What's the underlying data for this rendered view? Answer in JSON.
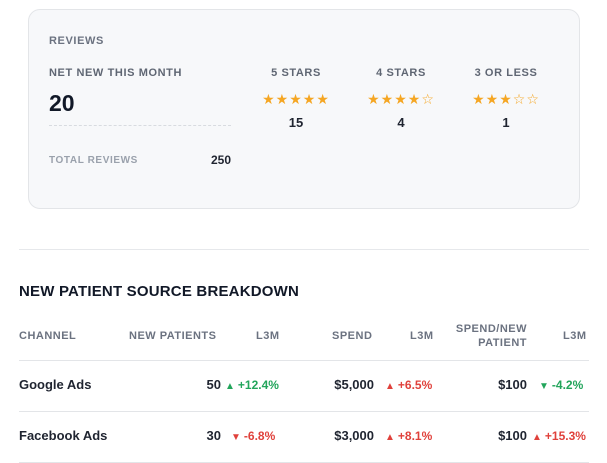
{
  "reviews": {
    "title": "REVIEWS",
    "net_new_label": "NET NEW THIS MONTH",
    "net_new_value": "20",
    "total_label": "TOTAL REVIEWS",
    "total_value": "250",
    "star_colors": {
      "filled": "#f5a623"
    },
    "columns": [
      {
        "label": "5 STARS",
        "stars": "★★★★★",
        "rating": 5,
        "count": "15"
      },
      {
        "label": "4 STARS",
        "stars": "★★★★☆",
        "rating": 4,
        "count": "4"
      },
      {
        "label": "3 OR LESS",
        "stars": "★★★☆☆",
        "rating": 3,
        "count": "1"
      }
    ]
  },
  "breakdown": {
    "title": "NEW PATIENT SOURCE BREAKDOWN",
    "headers": {
      "channel": "CHANNEL",
      "new_patients": "NEW PATIENTS",
      "l3m_1": "L3M",
      "spend": "SPEND",
      "l3m_2": "L3M",
      "spend_per_line1": "SPEND/NEW",
      "spend_per_line2": "PATIENT",
      "l3m_3": "L3M"
    },
    "rows": [
      {
        "channel": "Google Ads",
        "new_patients": "50",
        "np_delta": {
          "arrow": "▲",
          "text": "+12.4%"
        },
        "spend": "$5,000",
        "spend_delta": {
          "arrow": "▲",
          "text": "+6.5%"
        },
        "cpp": "$100",
        "cpp_delta": {
          "arrow": "▼",
          "text": "-4.2%"
        }
      },
      {
        "channel": "Facebook Ads",
        "new_patients": "30",
        "np_delta": {
          "arrow": "▼",
          "text": "-6.8%"
        },
        "spend": "$3,000",
        "spend_delta": {
          "arrow": "▲",
          "text": "+8.1%"
        },
        "cpp": "$100",
        "cpp_delta": {
          "arrow": "▲",
          "text": "+15.3%"
        }
      }
    ],
    "colors": {
      "positive": "#22a55b",
      "negative": "#e0413b"
    }
  }
}
